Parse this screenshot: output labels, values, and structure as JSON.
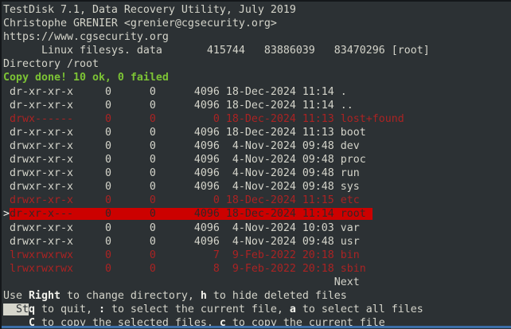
{
  "colors": {
    "background": "#2c3134",
    "text": "#d4d4ca",
    "bright": "#f2f2ec",
    "green": "#7cc335",
    "red": "#aa2323",
    "selected_bg": "#cc0100",
    "selected_text": "#342626",
    "inverse_bg": "#d6d6cc",
    "window_edge_blue": "#3c6fa9"
  },
  "header": {
    "title": "TestDisk 7.1, Data Recovery Utility, July 2019",
    "author": "Christophe GRENIER <grenier@cgsecurity.org>",
    "website": "https://www.cgsecurity.org",
    "partition": {
      "type": "Linux filesys. data",
      "start": "415744",
      "end": "83886039",
      "sectors": "83470296",
      "label": "[root]"
    },
    "directory_label": "Directory /root",
    "status": "Copy done! 10 ok, 0 failed"
  },
  "file_list": {
    "files": [
      {
        "perm": "dr-xr-xr-x",
        "uid": "0",
        "gid": "0",
        "size": "4096",
        "date": "18-Dec-2024",
        "time": "11:14",
        "name": ".",
        "state": "normal"
      },
      {
        "perm": "dr-xr-xr-x",
        "uid": "0",
        "gid": "0",
        "size": "4096",
        "date": "18-Dec-2024",
        "time": "11:14",
        "name": "..",
        "state": "normal"
      },
      {
        "perm": "drwx------",
        "uid": "0",
        "gid": "0",
        "size": "0",
        "date": "18-Dec-2024",
        "time": "11:13",
        "name": "lost+found",
        "state": "deleted"
      },
      {
        "perm": "dr-xr-xr-x",
        "uid": "0",
        "gid": "0",
        "size": "4096",
        "date": "18-Dec-2024",
        "time": "11:13",
        "name": "boot",
        "state": "normal"
      },
      {
        "perm": "drwxr-xr-x",
        "uid": "0",
        "gid": "0",
        "size": "4096",
        "date": "4-Nov-2024",
        "time": "09:48",
        "name": "dev",
        "state": "normal"
      },
      {
        "perm": "drwxr-xr-x",
        "uid": "0",
        "gid": "0",
        "size": "4096",
        "date": "4-Nov-2024",
        "time": "09:48",
        "name": "proc",
        "state": "normal"
      },
      {
        "perm": "drwxr-xr-x",
        "uid": "0",
        "gid": "0",
        "size": "4096",
        "date": "4-Nov-2024",
        "time": "09:48",
        "name": "run",
        "state": "normal"
      },
      {
        "perm": "drwxr-xr-x",
        "uid": "0",
        "gid": "0",
        "size": "4096",
        "date": "4-Nov-2024",
        "time": "09:48",
        "name": "sys",
        "state": "normal"
      },
      {
        "perm": "drwxr-xr-x",
        "uid": "0",
        "gid": "0",
        "size": "0",
        "date": "18-Dec-2024",
        "time": "11:15",
        "name": "etc",
        "state": "deleted"
      },
      {
        "perm": "dr-xr-x---",
        "uid": "0",
        "gid": "0",
        "size": "4096",
        "date": "18-Dec-2024",
        "time": "11:14",
        "name": "root",
        "state": "selected"
      },
      {
        "perm": "drwxr-xr-x",
        "uid": "0",
        "gid": "0",
        "size": "4096",
        "date": "4-Nov-2024",
        "time": "10:03",
        "name": "var",
        "state": "normal"
      },
      {
        "perm": "drwxr-xr-x",
        "uid": "0",
        "gid": "0",
        "size": "4096",
        "date": "4-Nov-2024",
        "time": "09:48",
        "name": "usr",
        "state": "normal"
      },
      {
        "perm": "lrwxrwxrwx",
        "uid": "0",
        "gid": "0",
        "size": "7",
        "date": "9-Feb-2022",
        "time": "20:18",
        "name": "bin",
        "state": "deleted"
      },
      {
        "perm": "lrwxrwxrwx",
        "uid": "0",
        "gid": "0",
        "size": "8",
        "date": "9-Feb-2022",
        "time": "20:18",
        "name": "sbin",
        "state": "deleted"
      }
    ]
  },
  "pager": {
    "next_label": "Next",
    "indent_cols": 52
  },
  "help": {
    "line1": [
      [
        "Use ",
        "n"
      ],
      [
        "Right",
        "b"
      ],
      [
        " to change directory, ",
        "n"
      ],
      [
        "h",
        "b"
      ],
      [
        " to hide deleted files",
        "n"
      ]
    ],
    "line2": [
      [
        "  St",
        "inv"
      ],
      [
        "q",
        "b"
      ],
      [
        " to quit, ",
        "n"
      ],
      [
        ":",
        "b"
      ],
      [
        " to select the current file, ",
        "n"
      ],
      [
        "a",
        "b"
      ],
      [
        " to select all files",
        "n"
      ]
    ],
    "line3": [
      [
        "    ",
        "n"
      ],
      [
        "C",
        "b"
      ],
      [
        " to copy the selected files, ",
        "n"
      ],
      [
        "c",
        "b"
      ],
      [
        " to copy the current file",
        "n"
      ]
    ]
  }
}
